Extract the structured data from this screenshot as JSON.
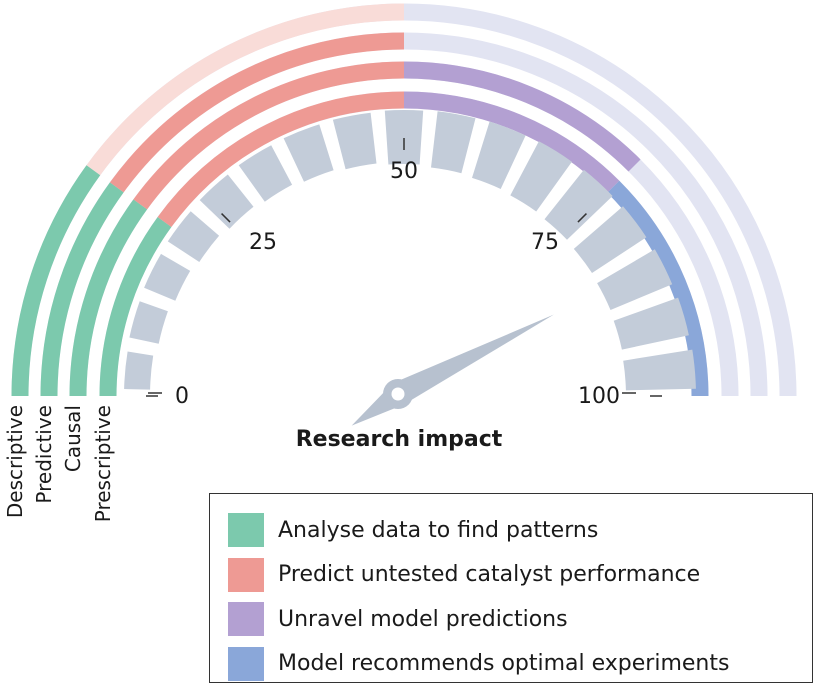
{
  "title": "Research impact",
  "gauge": {
    "min": 0,
    "max": 100,
    "needle_value": 85,
    "tick_labels": [
      {
        "value": 0,
        "label": "0"
      },
      {
        "value": 25,
        "label": "25"
      },
      {
        "value": 50,
        "label": "50"
      },
      {
        "value": 75,
        "label": "75"
      },
      {
        "value": 100,
        "label": "100"
      }
    ],
    "segment_count": 17,
    "segment_color": "#c3ccd9",
    "needle_color": "#b7c1cf"
  },
  "rings": [
    {
      "label": "Descriptive",
      "level_end": 20,
      "color": "#7cc9ad",
      "base_color": "#e2e4f2",
      "extra": {
        "color": "#f9dcd8",
        "from": 20,
        "to": 50
      }
    },
    {
      "label": "Predictive",
      "level_end": 50,
      "color": "#ee9a94",
      "from": 20,
      "base_color": "#e2e4f2"
    },
    {
      "label": "Causal",
      "level_end": 75,
      "color": "#b3a0d2",
      "from": 50,
      "base_color": "#e2e4f2"
    },
    {
      "label": "Prescriptive",
      "level_end": 100,
      "color": "#8aa7d9",
      "from": 75,
      "base_color": "#e2e4f2"
    }
  ],
  "legend": [
    {
      "label": "Analyse data to find patterns",
      "color": "#7cc9ad"
    },
    {
      "label": "Predict untested catalyst performance",
      "color": "#ee9a94"
    },
    {
      "label": "Unravel model predictions",
      "color": "#b3a0d2"
    },
    {
      "label": "Model recommends optimal experiments",
      "color": "#8aa7d9"
    }
  ]
}
